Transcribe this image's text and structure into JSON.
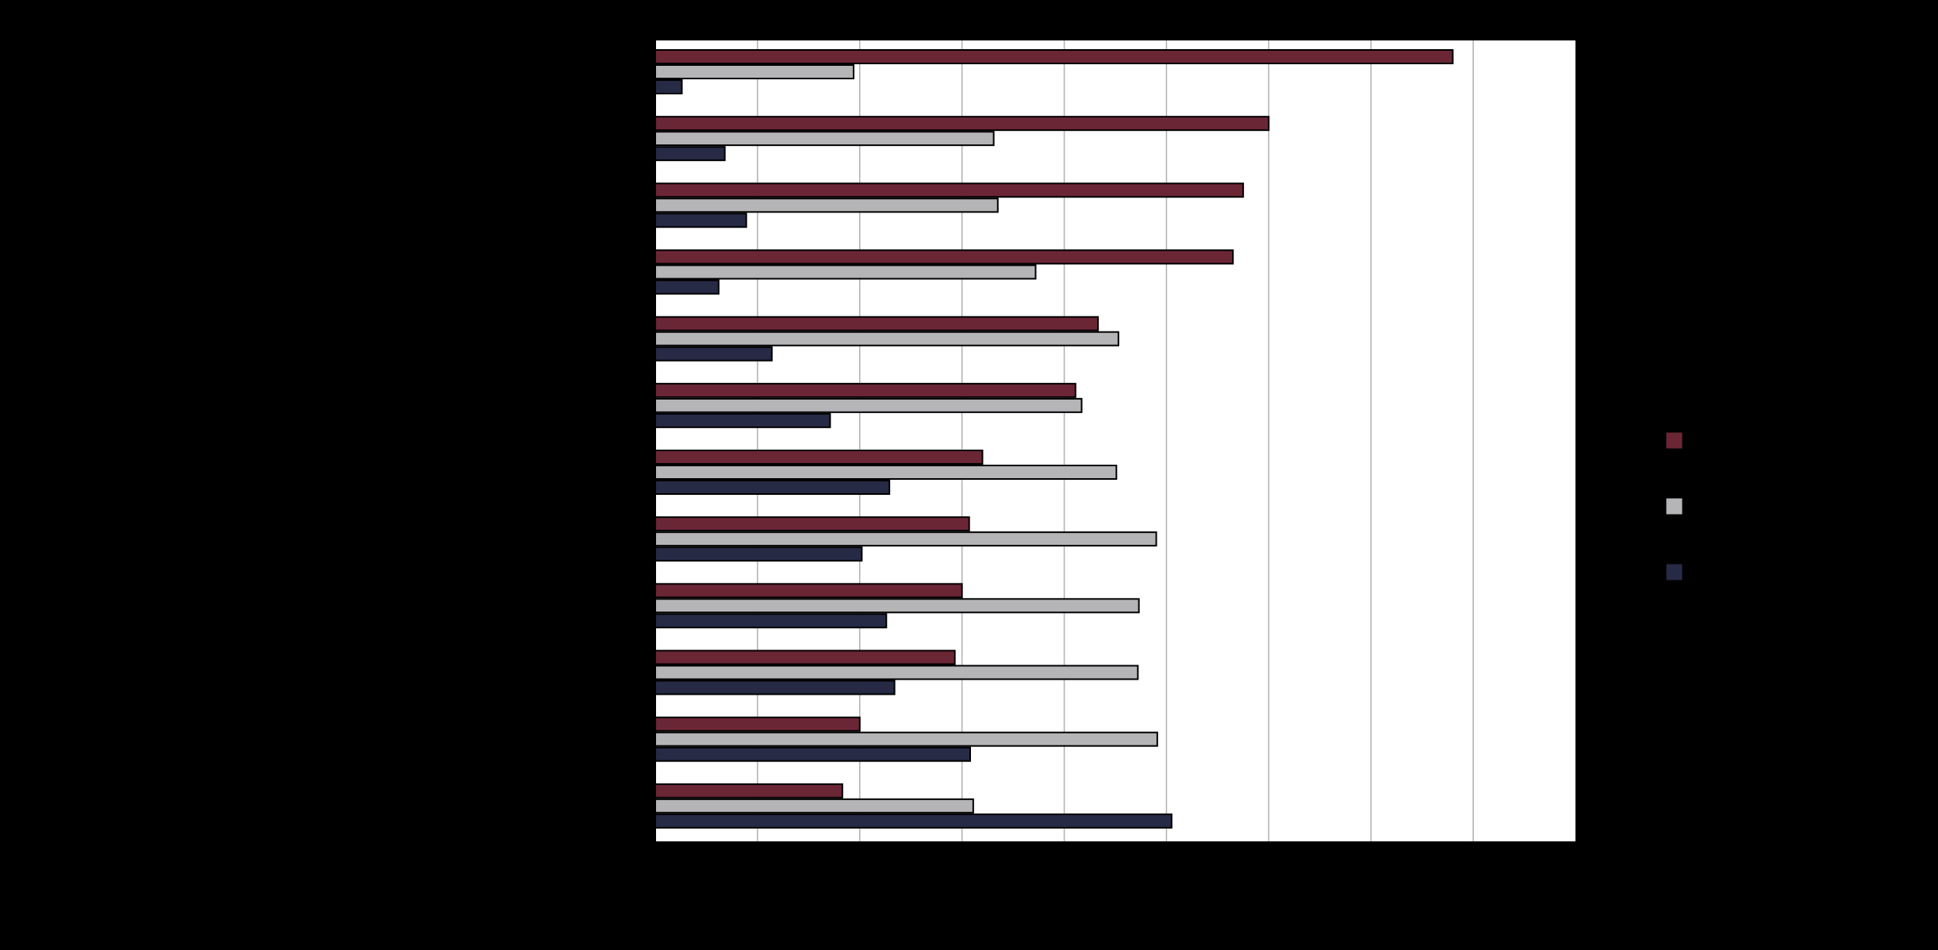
{
  "chart_data": {
    "type": "bar",
    "orientation": "horizontal",
    "title": "",
    "xlabel": "",
    "ylabel": "",
    "categories": [
      "",
      "",
      "",
      "",
      "",
      "",
      "",
      "",
      "",
      "",
      "",
      ""
    ],
    "series": [
      {
        "color": "#6b2636",
        "values": [
          78,
          60,
          57.5,
          56.5,
          43.3,
          41.1,
          32,
          30.7,
          30,
          29.3,
          20,
          18.3
        ]
      },
      {
        "color": "#b5b5b8",
        "values": [
          19.4,
          33.1,
          33.5,
          37.2,
          45.3,
          41.7,
          45.1,
          49,
          47.3,
          47.2,
          49.1,
          31.1
        ]
      },
      {
        "color": "#262a45",
        "values": [
          2.6,
          6.8,
          8.9,
          6.2,
          11.4,
          17.1,
          22.9,
          20.2,
          22.6,
          23.4,
          30.8,
          50.5
        ]
      }
    ],
    "xlim": [
      0,
      90
    ],
    "x_gridlines": [
      10,
      20,
      30,
      40,
      50,
      60,
      70,
      80
    ],
    "grid": true,
    "legend_position": "right"
  }
}
